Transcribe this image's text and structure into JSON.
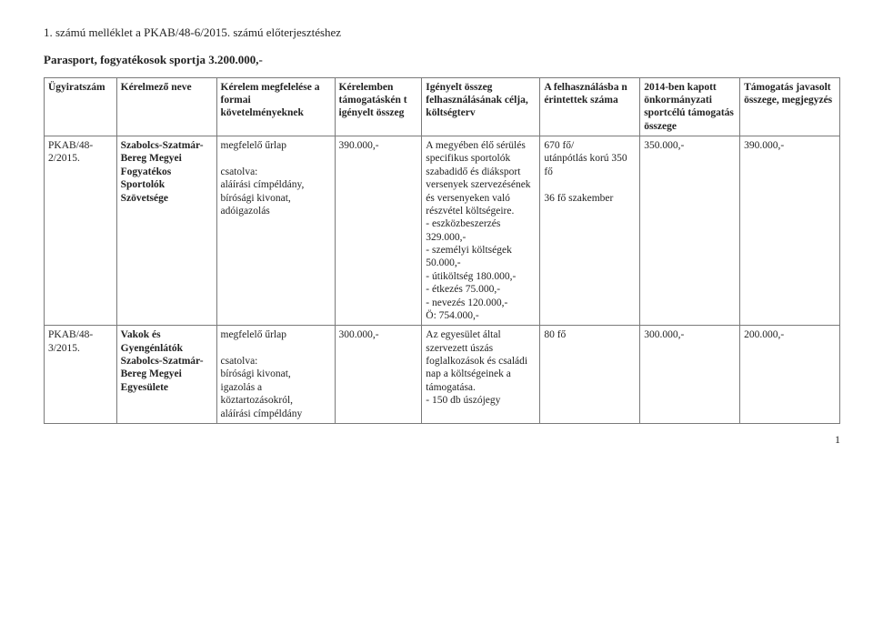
{
  "attachment_line": "1. számú melléklet a PKAB/48-6/2015. számú előterjesztéshez",
  "title_line": "Parasport, fogyatékosok sportja 3.200.000,-",
  "header": {
    "c0": "Ügyiratszám",
    "c1": "Kérelmező neve",
    "c2": "Kérelem megfelelése a formai követelményeknek",
    "c3": "Kérelemben támogatáskén t igényelt összeg",
    "c4": "Igényelt összeg felhasználásának célja, költségterv",
    "c5": "A felhasználásba n érintettek száma",
    "c6": "2014-ben kapott önkormányzati sportcélú támogatás összege",
    "c7": "Támogatás javasolt összege, megjegyzés"
  },
  "rows": [
    {
      "c0": "PKAB/48-2/2015.",
      "c1": "Szabolcs-Szatmár- Bereg Megyei Fogyatékos Sportolók Szövetsége",
      "c2": "megfelelő űrlap\n\ncsatolva:\naláírási címpéldány,\nbírósági kivonat,\nadóigazolás",
      "c3": "390.000,-",
      "c4": "A megyében élő sérülés specifikus sportolók szabadidő és diáksport versenyek szervezésének és versenyeken való részvétel költségeire.\n- eszközbeszerzés 329.000,-\n- személyi költségek 50.000,-\n- útiköltség 180.000,-\n- étkezés 75.000,-\n- nevezés 120.000,-\nÖ: 754.000,-",
      "c5": "670 fő/\nutánpótlás korú 350 fő\n\n36 fő szakember",
      "c6": "350.000,-",
      "c7": "390.000,-"
    },
    {
      "c0": "PKAB/48-3/2015.",
      "c1": "Vakok és Gyengénlátók Szabolcs-Szatmár-Bereg Megyei Egyesülete",
      "c2": "megfelelő űrlap\n\ncsatolva:\nbírósági kivonat,\nigazolás a köztartozásokról,\naláírási címpéldány",
      "c3": "300.000,-",
      "c4": "Az egyesület által szervezett úszás foglalkozások és családi nap a költségeinek a támogatása.\n- 150 db úszójegy",
      "c5": "80 fő",
      "c6": "300.000,-",
      "c7": "200.000,-"
    }
  ],
  "page_number": "1"
}
